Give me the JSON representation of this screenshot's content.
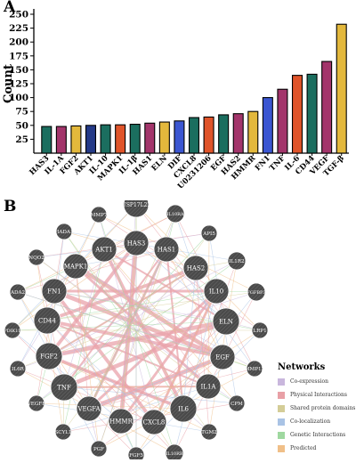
{
  "panels": {
    "a_label": "A",
    "b_label": "B"
  },
  "chart_data": [
    {
      "type": "bar",
      "panel": "A",
      "title": "",
      "xlabel": "",
      "ylabel": "Count",
      "ylim": [
        0,
        250
      ],
      "yticks": [
        25,
        50,
        75,
        100,
        125,
        150,
        175,
        200,
        225,
        250
      ],
      "grid": false,
      "categories": [
        "HAS3",
        "IL-1A",
        "FGF2",
        "AKT1",
        "IL-10",
        "MAPK1",
        "IL-1β",
        "HAS1",
        "ELN",
        "DIF",
        "CXCL8",
        "U0231206",
        "EGF",
        "HAS2",
        "HMMR",
        "FN1",
        "TNF",
        "IL-6",
        "CD44",
        "VEGF",
        "TGF-β"
      ],
      "values": [
        48,
        48,
        49,
        50,
        51,
        51,
        52,
        54,
        56,
        58,
        64,
        65,
        69,
        71,
        75,
        100,
        115,
        140,
        142,
        165,
        232
      ],
      "colors": [
        "#1b6e5f",
        "#a3356b",
        "#e3b83c",
        "#243a87",
        "#1b6e5f",
        "#e0542a",
        "#1b6e5f",
        "#a3356b",
        "#e3b83c",
        "#3b56d1",
        "#1b6e5f",
        "#e0542a",
        "#1b6e5f",
        "#a3356b",
        "#e3b83c",
        "#3b56d1",
        "#a3356b",
        "#e0542a",
        "#1b6e5f",
        "#a3356b",
        "#e3b83c"
      ]
    },
    {
      "type": "network",
      "panel": "B",
      "nodes": [
        {
          "label": "USP17L22",
          "size": "large"
        },
        {
          "label": "IL10RA",
          "size": "small"
        },
        {
          "label": "API5",
          "size": "small"
        },
        {
          "label": "IL1R2",
          "size": "small"
        },
        {
          "label": "FGFBP3",
          "size": "small"
        },
        {
          "label": "LRP1",
          "size": "small"
        },
        {
          "label": "MMP12",
          "size": "small"
        },
        {
          "label": "CPM",
          "size": "small"
        },
        {
          "label": "TGM2",
          "size": "small"
        },
        {
          "label": "IL10RB",
          "size": "small"
        },
        {
          "label": "FGF5",
          "size": "small"
        },
        {
          "label": "PGF",
          "size": "small"
        },
        {
          "label": "SCYL1",
          "size": "small"
        },
        {
          "label": "VEGFB",
          "size": "small"
        },
        {
          "label": "IL6R",
          "size": "small"
        },
        {
          "label": "PDIK1L",
          "size": "small"
        },
        {
          "label": "ADA2",
          "size": "small"
        },
        {
          "label": "NQO2",
          "size": "small"
        },
        {
          "label": "HADA1",
          "size": "small"
        },
        {
          "label": "MMP7",
          "size": "small"
        },
        {
          "label": "HAS3",
          "size": "large"
        },
        {
          "label": "HAS1",
          "size": "large"
        },
        {
          "label": "AKT1",
          "size": "large"
        },
        {
          "label": "HAS2",
          "size": "large"
        },
        {
          "label": "IL10",
          "size": "large"
        },
        {
          "label": "ELN",
          "size": "large"
        },
        {
          "label": "EGF",
          "size": "large"
        },
        {
          "label": "IL1A",
          "size": "large"
        },
        {
          "label": "IL6",
          "size": "large"
        },
        {
          "label": "CXCL8",
          "size": "large"
        },
        {
          "label": "HMMR",
          "size": "large"
        },
        {
          "label": "VEGFA",
          "size": "large"
        },
        {
          "label": "TNF",
          "size": "large"
        },
        {
          "label": "FGF2",
          "size": "large"
        },
        {
          "label": "CD44",
          "size": "large"
        },
        {
          "label": "FN1",
          "size": "large"
        },
        {
          "label": "MAPK1",
          "size": "large"
        }
      ],
      "legend": {
        "title": "Networks",
        "placement": "bottom-right",
        "items": [
          {
            "label": "Co-expression",
            "color": "#c9b7dd"
          },
          {
            "label": "Physical Interactions",
            "color": "#e8a0a6"
          },
          {
            "label": "Shared protein domains",
            "color": "#d4cd97"
          },
          {
            "label": "Co-localization",
            "color": "#a9c3e5"
          },
          {
            "label": "Genetic Interactions",
            "color": "#9fd8a0"
          },
          {
            "label": "Predicted",
            "color": "#f0bf88"
          }
        ]
      }
    }
  ]
}
